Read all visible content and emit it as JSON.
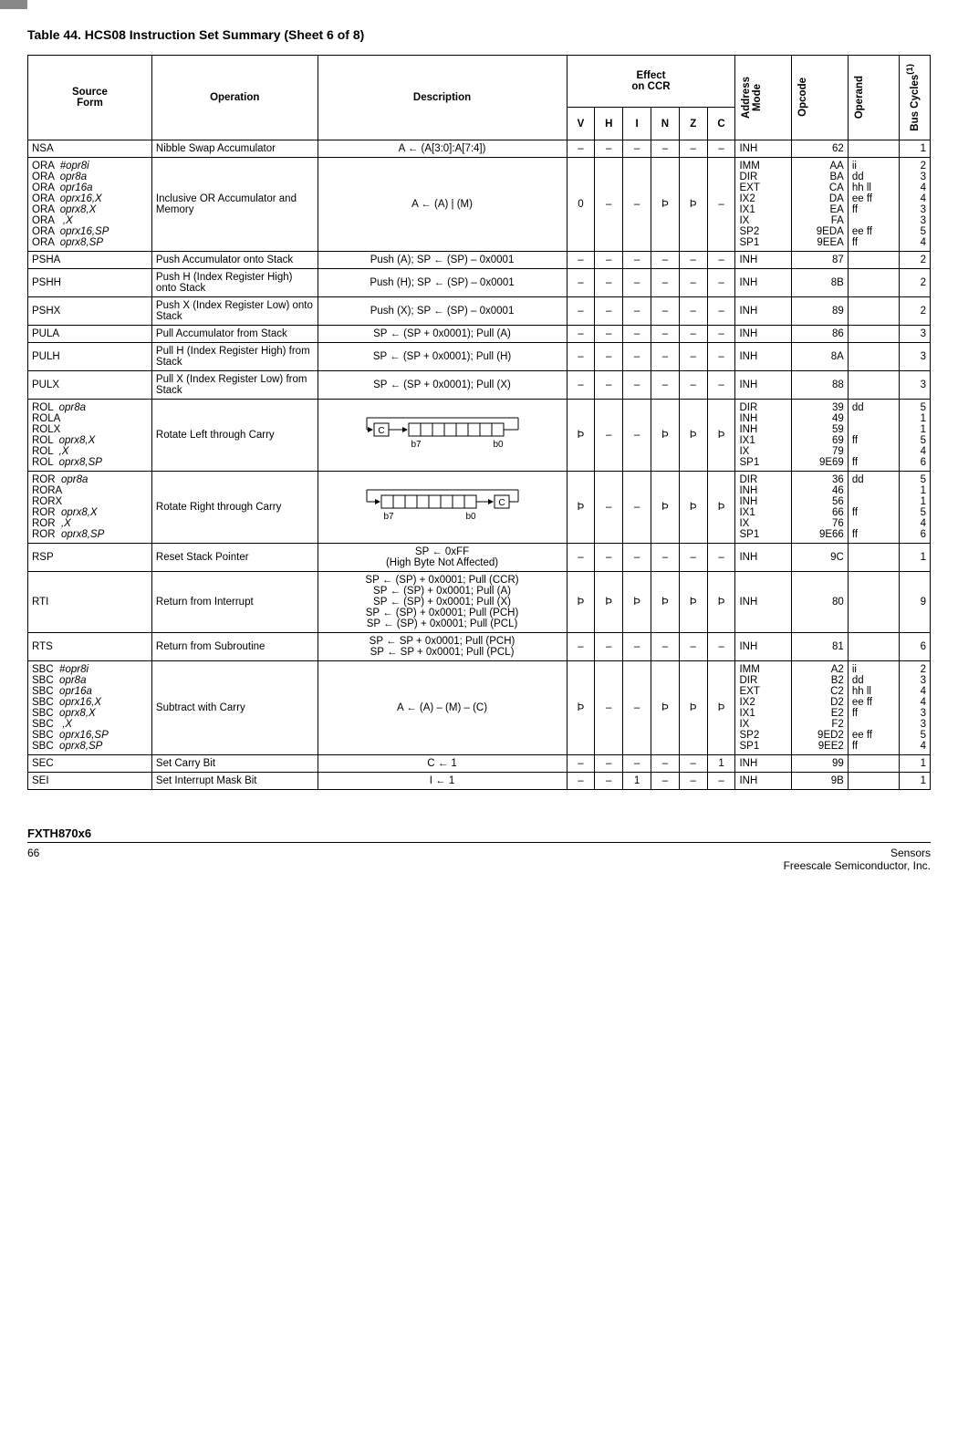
{
  "title": "Table 44. HCS08 Instruction Set Summary (Sheet 6 of 8)",
  "headers": {
    "source": "Source\nForm",
    "operation": "Operation",
    "description": "Description",
    "effect": "Effect\non CCR",
    "ccr": [
      "V",
      "H",
      "I",
      "N",
      "Z",
      "C"
    ],
    "address": "Address\nMode",
    "opcode": "Opcode",
    "operand": "Operand",
    "bus": "Bus Cycles",
    "bus_sup": "(1)"
  },
  "rows": [
    {
      "src": "NSA",
      "op": "Nibble Swap Accumulator",
      "desc": "A ← (A[3:0]:A[7:4])",
      "ccr": [
        "–",
        "–",
        "–",
        "–",
        "–",
        "–"
      ],
      "addr": "INH",
      "opc": "62",
      "opr": "",
      "bus": "1"
    },
    {
      "src": "ORA  #opr8i\nORA  opr8a\nORA  opr16a\nORA  oprx16,X\nORA  oprx8,X\nORA   ,X\nORA  oprx16,SP\nORA  oprx8,SP",
      "op": "Inclusive OR Accumulator and Memory",
      "desc": "A ← (A) | (M)",
      "ccr": [
        "0",
        "–",
        "–",
        "Þ",
        "Þ",
        "–"
      ],
      "addr": "IMM\nDIR\nEXT\nIX2\nIX1\nIX\nSP2\nSP1",
      "opc": "AA\nBA\nCA\nDA\nEA\nFA\n9EDA\n9EEA",
      "opr": "ii\ndd\nhh ll\nee ff\nff\n\nee ff\nff",
      "bus": "2\n3\n4\n4\n3\n3\n5\n4"
    },
    {
      "src": "PSHA",
      "op": "Push Accumulator onto Stack",
      "desc": "Push (A); SP ← (SP) – 0x0001",
      "ccr": [
        "–",
        "–",
        "–",
        "–",
        "–",
        "–"
      ],
      "addr": "INH",
      "opc": "87",
      "opr": "",
      "bus": "2"
    },
    {
      "src": "PSHH",
      "op": "Push H (Index Register High) onto Stack",
      "desc": "Push (H); SP ← (SP) – 0x0001",
      "ccr": [
        "–",
        "–",
        "–",
        "–",
        "–",
        "–"
      ],
      "addr": "INH",
      "opc": "8B",
      "opr": "",
      "bus": "2"
    },
    {
      "src": "PSHX",
      "op": "Push X (Index Register Low) onto Stack",
      "desc": "Push (X); SP ← (SP) – 0x0001",
      "ccr": [
        "–",
        "–",
        "–",
        "–",
        "–",
        "–"
      ],
      "addr": "INH",
      "opc": "89",
      "opr": "",
      "bus": "2"
    },
    {
      "src": "PULA",
      "op": "Pull Accumulator from Stack",
      "desc": "SP ← (SP + 0x0001); Pull (A)",
      "ccr": [
        "–",
        "–",
        "–",
        "–",
        "–",
        "–"
      ],
      "addr": "INH",
      "opc": "86",
      "opr": "",
      "bus": "3"
    },
    {
      "src": "PULH",
      "op": "Pull H (Index Register High) from Stack",
      "desc": "SP ← (SP + 0x0001); Pull (H)",
      "ccr": [
        "–",
        "–",
        "–",
        "–",
        "–",
        "–"
      ],
      "addr": "INH",
      "opc": "8A",
      "opr": "",
      "bus": "3"
    },
    {
      "src": "PULX",
      "op": "Pull X (Index Register Low) from Stack",
      "desc": "SP ← (SP + 0x0001); Pull (X)",
      "ccr": [
        "–",
        "–",
        "–",
        "–",
        "–",
        "–"
      ],
      "addr": "INH",
      "opc": "88",
      "opr": "",
      "bus": "3"
    },
    {
      "src": "ROL  opr8a\nROLA\nROLX\nROL  oprx8,X\nROL  ,X\nROL  oprx8,SP",
      "op": "Rotate Left through Carry",
      "desc_diagram": "rol",
      "ccr": [
        "Þ",
        "–",
        "–",
        "Þ",
        "Þ",
        "Þ"
      ],
      "addr": "DIR\nINH\nINH\nIX1\nIX\nSP1",
      "opc": "39\n49\n59\n69\n79\n9E69",
      "opr": "dd\n\n\nff\n\nff",
      "bus": "5\n1\n1\n5\n4\n6"
    },
    {
      "src": "ROR  opr8a\nRORA\nRORX\nROR  oprx8,X\nROR  ,X\nROR  oprx8,SP",
      "op": "Rotate Right through Carry",
      "desc_diagram": "ror",
      "ccr": [
        "Þ",
        "–",
        "–",
        "Þ",
        "Þ",
        "Þ"
      ],
      "addr": "DIR\nINH\nINH\nIX1\nIX\nSP1",
      "opc": "36\n46\n56\n66\n76\n9E66",
      "opr": "dd\n\n\nff\n\nff",
      "bus": "5\n1\n1\n5\n4\n6"
    },
    {
      "src": "RSP",
      "op": "Reset Stack Pointer",
      "desc": "SP ← 0xFF\n(High Byte Not Affected)",
      "ccr": [
        "–",
        "–",
        "–",
        "–",
        "–",
        "–"
      ],
      "addr": "INH",
      "opc": "9C",
      "opr": "",
      "bus": "1"
    },
    {
      "src": "RTI",
      "op": "Return from Interrupt",
      "desc": "SP ← (SP) + 0x0001; Pull (CCR)\nSP ← (SP) + 0x0001; Pull (A)\nSP ← (SP) + 0x0001; Pull (X)\nSP ← (SP) + 0x0001; Pull (PCH)\nSP ← (SP) + 0x0001; Pull (PCL)",
      "ccr": [
        "Þ",
        "Þ",
        "Þ",
        "Þ",
        "Þ",
        "Þ"
      ],
      "addr": "INH",
      "opc": "80",
      "opr": "",
      "bus": "9"
    },
    {
      "src": "RTS",
      "op": "Return from Subroutine",
      "desc": "SP ← SP + 0x0001; Pull (PCH)\nSP ← SP + 0x0001; Pull (PCL)",
      "ccr": [
        "–",
        "–",
        "–",
        "–",
        "–",
        "–"
      ],
      "addr": "INH",
      "opc": "81",
      "opr": "",
      "bus": "6"
    },
    {
      "src": "SBC  #opr8i\nSBC  opr8a\nSBC  opr16a\nSBC  oprx16,X\nSBC  oprx8,X\nSBC   ,X\nSBC  oprx16,SP\nSBC  oprx8,SP",
      "op": "Subtract with Carry",
      "desc": "A ← (A) – (M) – (C)",
      "ccr": [
        "Þ",
        "–",
        "–",
        "Þ",
        "Þ",
        "Þ"
      ],
      "addr": "IMM\nDIR\nEXT\nIX2\nIX1\nIX\nSP2\nSP1",
      "opc": "A2\nB2\nC2\nD2\nE2\nF2\n9ED2\n9EE2",
      "opr": "ii\ndd\nhh ll\nee ff\nff\n\nee ff\nff",
      "bus": "2\n3\n4\n4\n3\n3\n5\n4"
    },
    {
      "src": "SEC",
      "op": "Set Carry Bit",
      "desc": "C ← 1",
      "ccr": [
        "–",
        "–",
        "–",
        "–",
        "–",
        "1"
      ],
      "addr": "INH",
      "opc": "99",
      "opr": "",
      "bus": "1"
    },
    {
      "src": "SEI",
      "op": "Set Interrupt Mask Bit",
      "desc": "I ← 1",
      "ccr": [
        "–",
        "–",
        "1",
        "–",
        "–",
        "–"
      ],
      "addr": "INH",
      "opc": "9B",
      "opr": "",
      "bus": "1"
    }
  ],
  "footer": {
    "product": "FXTH870x6",
    "page": "66",
    "right1": "Sensors",
    "right2": "Freescale Semiconductor, Inc."
  },
  "diagrams": {
    "labels": {
      "b7": "b7",
      "b0": "b0",
      "C": "C"
    }
  }
}
